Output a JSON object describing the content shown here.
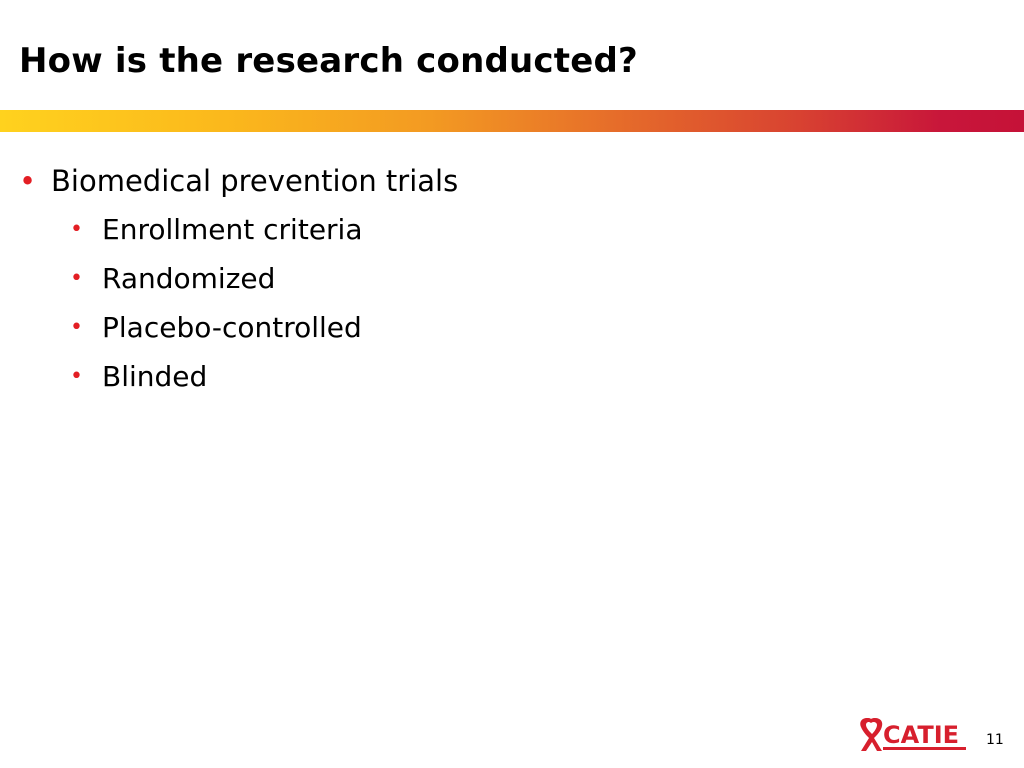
{
  "slide": {
    "title": "How is the research conducted?",
    "bullets": {
      "main": "Biomedical prevention trials",
      "sub": [
        "Enrollment criteria",
        "Randomized",
        "Placebo-controlled",
        "Blinded"
      ]
    },
    "bullet_glyph": "•",
    "page_number": "11"
  },
  "logo": {
    "text": "CATIE",
    "icon": "red-ribbon-icon"
  },
  "colors": {
    "accent_red": "#e31e24",
    "logo_red": "#d71f2d",
    "bar_gradient_start": "#ffd21e",
    "bar_gradient_end": "#c51238"
  }
}
